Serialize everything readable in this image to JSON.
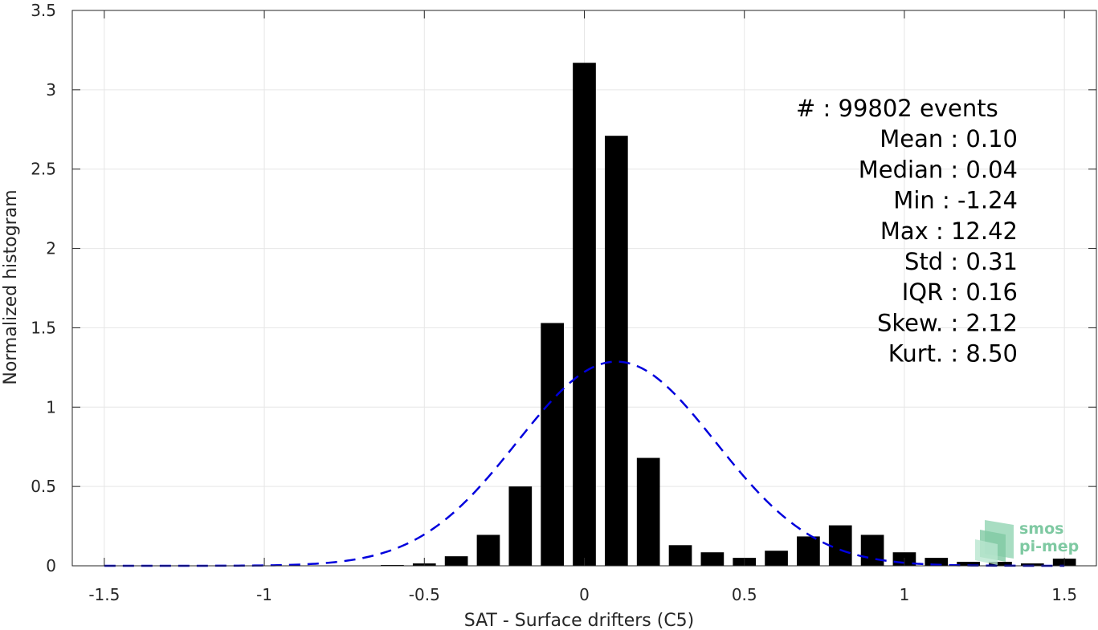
{
  "chart_data": {
    "type": "bar",
    "xlabel": "SAT - Surface drifters (C5)",
    "ylabel": "Normalized histogram",
    "xlim": [
      -1.6,
      1.6
    ],
    "ylim": [
      0,
      3.5
    ],
    "x_ticks": [
      -1.5,
      -1,
      -0.5,
      0,
      0.5,
      1,
      1.5
    ],
    "x_tick_labels": [
      "-1.5",
      "-1",
      "-0.5",
      "0",
      "0.5",
      "1",
      "1.5"
    ],
    "y_ticks": [
      0,
      0.5,
      1,
      1.5,
      2,
      2.5,
      3,
      3.5
    ],
    "y_tick_labels": [
      "0",
      "0.5",
      "1",
      "1.5",
      "2",
      "2.5",
      "3",
      "3.5"
    ],
    "grid": true,
    "bar_color": "#000000",
    "bars": {
      "x": [
        -0.6,
        -0.5,
        -0.4,
        -0.3,
        -0.2,
        -0.1,
        0.0,
        0.1,
        0.2,
        0.3,
        0.4,
        0.5,
        0.6,
        0.7,
        0.8,
        0.9,
        1.0,
        1.1,
        1.2,
        1.3,
        1.4,
        1.5
      ],
      "values": [
        0.005,
        0.015,
        0.06,
        0.195,
        0.5,
        1.53,
        3.17,
        2.71,
        0.68,
        0.13,
        0.085,
        0.05,
        0.095,
        0.185,
        0.255,
        0.195,
        0.085,
        0.05,
        0.025,
        0.025,
        0.015,
        0.045
      ]
    },
    "fit_curve": {
      "style": "dashed",
      "color": "#0000dd",
      "mean": 0.1,
      "std": 0.31,
      "x_range": [
        -1.5,
        1.5
      ]
    },
    "stats": [
      {
        "label": "#  ",
        "value": "99802 events"
      },
      {
        "label": "Mean",
        "value": "0.10"
      },
      {
        "label": "Median",
        "value": "0.04"
      },
      {
        "label": "Min",
        "value": "-1.24"
      },
      {
        "label": "Max",
        "value": "12.42"
      },
      {
        "label": "Std",
        "value": "0.31"
      },
      {
        "label": "IQR",
        "value": "0.16"
      },
      {
        "label": "Skew.",
        "value": "2.12"
      },
      {
        "label": "Kurt.",
        "value": "8.50"
      }
    ]
  },
  "logo": {
    "line1": "smos",
    "line2": "pi-mep",
    "color": "#7fc9a2"
  }
}
